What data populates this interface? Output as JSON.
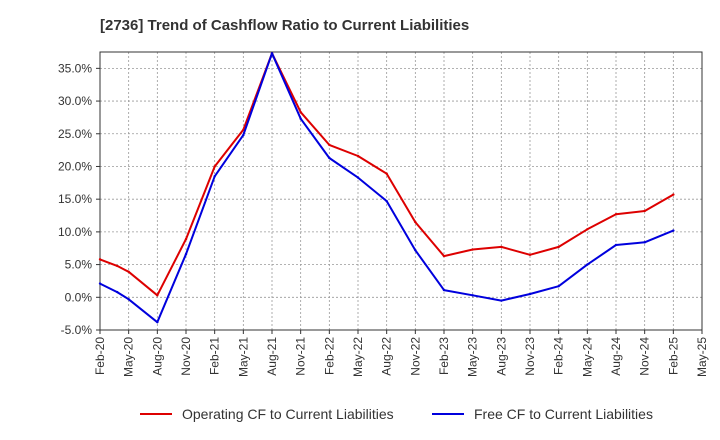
{
  "chart_data": {
    "type": "line",
    "title": "[2736]  Trend of Cashflow Ratio to Current Liabilities",
    "xlabel": "",
    "ylabel": "",
    "x_tick_labels": [
      "Feb-20",
      "May-20",
      "Aug-20",
      "Nov-20",
      "Feb-21",
      "May-21",
      "Aug-21",
      "Nov-21",
      "Feb-22",
      "May-22",
      "Aug-22",
      "Nov-22",
      "Feb-23",
      "May-23",
      "Aug-23",
      "Nov-23",
      "Feb-24",
      "May-24",
      "Aug-24",
      "Nov-24",
      "Feb-25",
      "May-25"
    ],
    "y_tick_labels": [
      "35.0%",
      "30.0%",
      "25.0%",
      "20.0%",
      "15.0%",
      "10.0%",
      "5.0%",
      "0.0%",
      "-5.0%"
    ],
    "y_ticks": [
      35,
      30,
      25,
      20,
      15,
      10,
      5,
      0,
      -5
    ],
    "ylim": [
      -5,
      37.5
    ],
    "grid": true,
    "legend_position": "bottom",
    "x": [
      "Feb-20",
      "Mar-20",
      "May-20",
      "Aug-20",
      "Nov-20",
      "Feb-21",
      "May-21",
      "Aug-21",
      "Nov-21",
      "Feb-22",
      "May-22",
      "Aug-22",
      "Nov-22",
      "Feb-23",
      "May-23",
      "Aug-23",
      "Nov-23",
      "Feb-24",
      "May-24",
      "Aug-24",
      "Nov-24",
      "Feb-25"
    ],
    "x_index": [
      0,
      0.6,
      1,
      2,
      3,
      4,
      5,
      6,
      7,
      8,
      9,
      10,
      11,
      12,
      13,
      14,
      15,
      16,
      17,
      18,
      19,
      20
    ],
    "series": [
      {
        "name": "Operating CF to Current Liabilities",
        "color": "#dd0000",
        "values": [
          5.8,
          4.8,
          3.9,
          0.3,
          8.9,
          20.0,
          25.6,
          37.3,
          28.3,
          23.3,
          21.6,
          18.9,
          11.5,
          6.3,
          7.3,
          7.7,
          6.5,
          7.7,
          10.4,
          12.7,
          13.2,
          15.7
        ]
      },
      {
        "name": "Free CF to Current Liabilities",
        "color": "#0000dd",
        "values": [
          2.1,
          0.8,
          -0.3,
          -3.8,
          6.6,
          18.5,
          24.8,
          37.3,
          27.3,
          21.3,
          18.3,
          14.7,
          7.2,
          1.1,
          0.3,
          -0.5,
          0.5,
          1.7,
          5.0,
          8.0,
          8.4,
          10.2
        ]
      }
    ]
  }
}
